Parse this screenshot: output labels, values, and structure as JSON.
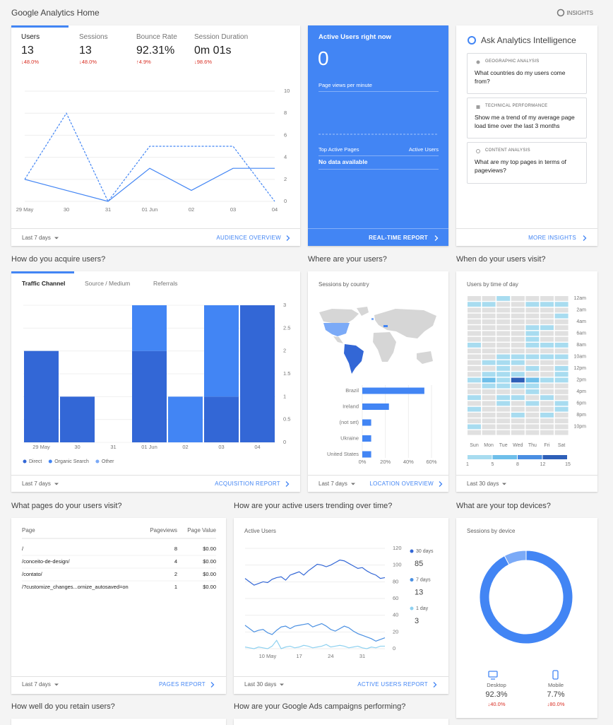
{
  "header": {
    "title": "Google Analytics Home",
    "insights": "INSIGHTS"
  },
  "audience": {
    "metrics": [
      {
        "label": "Users",
        "value": "13",
        "change": "↓48.0%"
      },
      {
        "label": "Sessions",
        "value": "13",
        "change": "↓48.0%"
      },
      {
        "label": "Bounce Rate",
        "value": "92.31%",
        "change": "↑4.9%"
      },
      {
        "label": "Session Duration",
        "value": "0m 01s",
        "change": "↓98.6%"
      }
    ],
    "chart": {
      "type": "line",
      "categories": [
        "29 May",
        "30",
        "31",
        "01 Jun",
        "02",
        "03",
        "04"
      ],
      "series": [
        {
          "color": "#4285f4",
          "dashed": false,
          "values": [
            2,
            1,
            0,
            3,
            1,
            3,
            3
          ]
        },
        {
          "color": "#4285f4",
          "dashed": true,
          "values": [
            2,
            8,
            0,
            5,
            5,
            5,
            0
          ]
        }
      ],
      "ylim": [
        0,
        10
      ],
      "yticks": [
        0,
        2,
        4,
        6,
        8,
        10
      ],
      "grid": true
    },
    "footer": {
      "range": "Last 7 days",
      "link": "AUDIENCE OVERVIEW"
    }
  },
  "realtime": {
    "title": "Active Users right now",
    "value": "0",
    "subtitle": "Page views per minute",
    "table_header": [
      "Top Active Pages",
      "Active Users"
    ],
    "empty": "No data available",
    "link": "REAL-TIME REPORT"
  },
  "intelligence": {
    "title": "Ask Analytics Intelligence",
    "cards": [
      {
        "category": "GEOGRAPHIC ANALYSIS",
        "question": "What countries do my users come from?"
      },
      {
        "category": "TECHNICAL PERFORMANCE",
        "question": "Show me a trend of my average page load time over the last 3 months"
      },
      {
        "category": "CONTENT ANALYSIS",
        "question": "What are my top pages in terms of pageviews?"
      }
    ],
    "link": "MORE INSIGHTS"
  },
  "acquisition": {
    "heading": "How do you acquire users?",
    "tabs": [
      "Traffic Channel",
      "Source / Medium",
      "Referrals"
    ],
    "chart": {
      "type": "bar",
      "stacked": true,
      "categories": [
        "29 May",
        "30",
        "31",
        "01 Jun",
        "02",
        "03",
        "04"
      ],
      "series": [
        {
          "name": "Direct",
          "color": "#3367d6",
          "values": [
            2,
            1,
            0,
            2,
            0,
            1,
            3
          ]
        },
        {
          "name": "Organic Search",
          "color": "#4285f4",
          "values": [
            0,
            0,
            0,
            1,
            1,
            2,
            0
          ]
        },
        {
          "name": "Other",
          "color": "#7baaf7",
          "values": [
            0,
            0,
            0,
            0,
            0,
            0,
            0
          ]
        }
      ],
      "ylim": [
        0,
        3
      ],
      "yticks": [
        0,
        0.5,
        1,
        1.5,
        2,
        2.5,
        3
      ],
      "grid": true
    },
    "footer": {
      "range": "Last 7 days",
      "link": "ACQUISITION REPORT"
    }
  },
  "location": {
    "heading": "Where are your users?",
    "chart": {
      "type": "bar",
      "orientation": "horizontal",
      "title": "Sessions by country",
      "categories": [
        "Brazil",
        "Ireland",
        "(not set)",
        "Ukraine",
        "United States"
      ],
      "values": [
        53.8,
        23.1,
        7.7,
        7.7,
        7.7
      ],
      "color": "#4285f4",
      "xlim": [
        0,
        60
      ],
      "xticks": [
        {
          "value": 0,
          "label": "0%"
        },
        {
          "value": 20,
          "label": "20%"
        },
        {
          "value": 40,
          "label": "40%"
        },
        {
          "value": 60,
          "label": "60%"
        }
      ],
      "grid": true
    },
    "footer": {
      "range": "Last 7 days",
      "link": "LOCATION OVERVIEW"
    }
  },
  "time": {
    "heading": "When do your users visit?",
    "chart": {
      "type": "heatmap",
      "title": "Users by time of day",
      "columns": [
        "Sun",
        "Mon",
        "Tue",
        "Wed",
        "Thu",
        "Fri",
        "Sat"
      ],
      "rows": [
        "12am",
        null,
        "2am",
        null,
        "4am",
        null,
        "6am",
        null,
        "8am",
        null,
        "10am",
        null,
        "12pm",
        null,
        "2pm",
        null,
        "4pm",
        null,
        "6pm",
        null,
        "8pm",
        null,
        "10pm",
        null
      ],
      "values": [
        [
          0,
          0,
          1,
          0,
          0,
          0,
          0
        ],
        [
          1,
          1,
          0,
          0,
          1,
          1,
          1
        ],
        [
          0,
          0,
          0,
          0,
          0,
          0,
          0
        ],
        [
          0,
          0,
          0,
          0,
          0,
          0,
          1
        ],
        [
          0,
          0,
          0,
          0,
          0,
          0,
          0
        ],
        [
          0,
          0,
          0,
          0,
          1,
          1,
          0
        ],
        [
          0,
          0,
          0,
          0,
          1,
          0,
          0
        ],
        [
          0,
          0,
          0,
          0,
          1,
          0,
          0
        ],
        [
          1,
          0,
          0,
          0,
          1,
          1,
          1
        ],
        [
          0,
          0,
          0,
          0,
          0,
          0,
          0
        ],
        [
          0,
          0,
          1,
          1,
          1,
          1,
          1
        ],
        [
          0,
          1,
          1,
          1,
          0,
          0,
          0
        ],
        [
          0,
          0,
          1,
          0,
          1,
          0,
          1
        ],
        [
          0,
          1,
          1,
          1,
          0,
          0,
          1
        ],
        [
          1,
          5,
          1,
          12,
          5,
          1,
          1
        ],
        [
          0,
          1,
          1,
          1,
          1,
          0,
          0
        ],
        [
          0,
          0,
          0,
          0,
          1,
          0,
          0
        ],
        [
          1,
          0,
          1,
          1,
          0,
          1,
          0
        ],
        [
          0,
          0,
          1,
          0,
          1,
          0,
          1
        ],
        [
          1,
          0,
          0,
          0,
          0,
          0,
          1
        ],
        [
          0,
          0,
          0,
          1,
          0,
          1,
          0
        ],
        [
          0,
          0,
          0,
          0,
          0,
          0,
          0
        ],
        [
          1,
          0,
          0,
          0,
          0,
          0,
          0
        ],
        [
          0,
          0,
          0,
          0,
          0,
          0,
          0
        ]
      ],
      "empty_color": "#e0e0e0",
      "scale": {
        "ticks": [
          1,
          5,
          8,
          12,
          15
        ],
        "colors": [
          "#a8dcf0",
          "#6fbfea",
          "#4a8ee2",
          "#2e5fb8"
        ]
      }
    },
    "footer": {
      "range": "Last 30 days"
    }
  },
  "pages": {
    "heading": "What pages do your users visit?",
    "table": {
      "header": [
        "Page",
        "Pageviews",
        "Page Value"
      ],
      "rows": [
        [
          "/",
          8,
          "$0.00"
        ],
        [
          "/conceito-de-design/",
          4,
          "$0.00"
        ],
        [
          "/contato/",
          2,
          "$0.00"
        ],
        [
          "/?customize_changes...ornize_autosaved=on",
          1,
          "$0.00"
        ]
      ]
    },
    "footer": {
      "range": "Last 7 days",
      "link": "PAGES REPORT"
    }
  },
  "trend": {
    "heading": "How are your active users trending over time?",
    "chart": {
      "type": "line",
      "title": "Active Users",
      "categories": [
        null,
        null,
        null,
        null,
        null,
        "10 May",
        null,
        null,
        null,
        null,
        null,
        null,
        "17",
        null,
        null,
        null,
        null,
        null,
        null,
        "24",
        null,
        null,
        null,
        null,
        null,
        null,
        "31",
        null,
        null,
        null,
        null,
        null
      ],
      "series": [
        {
          "name": "30 days",
          "color": "#3367d6",
          "current": 85,
          "dashed": false,
          "values": [
            84,
            80,
            76,
            78,
            80,
            79,
            83,
            85,
            86,
            82,
            88,
            90,
            92,
            88,
            93,
            97,
            101,
            100,
            98,
            100,
            103,
            106,
            105,
            102,
            99,
            96,
            97,
            93,
            90,
            88,
            84,
            85
          ]
        },
        {
          "name": "7 days",
          "color": "#4a90e2",
          "current": 13,
          "dashed": false,
          "values": [
            28,
            24,
            20,
            22,
            23,
            19,
            17,
            22,
            26,
            27,
            24,
            27,
            28,
            29,
            30,
            26,
            28,
            30,
            27,
            23,
            21,
            24,
            27,
            25,
            21,
            18,
            16,
            14,
            12,
            9,
            11,
            13
          ]
        },
        {
          "name": "1 day",
          "color": "#8ed1f0",
          "current": 3,
          "dashed": false,
          "values": [
            2,
            1,
            0,
            2,
            1,
            0,
            3,
            10,
            0,
            2,
            3,
            1,
            2,
            4,
            3,
            1,
            2,
            3,
            5,
            2,
            3,
            4,
            3,
            1,
            2,
            3,
            1,
            0,
            2,
            1,
            3,
            3
          ]
        }
      ],
      "ylim": [
        0,
        120
      ],
      "yticks": [
        0,
        20,
        40,
        60,
        80,
        100,
        120
      ],
      "grid": true
    },
    "footer": {
      "range": "Last 30 days",
      "link": "ACTIVE USERS REPORT"
    }
  },
  "devices": {
    "heading": "What are your top devices?",
    "chart": {
      "type": "pie",
      "donut": true,
      "title": "Sessions by device",
      "categories": [
        "Desktop",
        "Mobile"
      ],
      "values": [
        92.3,
        7.7
      ],
      "value_labels": [
        "92.3%",
        "7.7%"
      ],
      "changes": [
        "↓40.0%",
        "↓80.0%"
      ],
      "colors": [
        "#4285f4",
        "#7baaf7"
      ]
    }
  },
  "retention": {
    "heading": "How well do you retain users?"
  },
  "ads": {
    "heading": "How are your Google Ads campaigns performing?"
  }
}
